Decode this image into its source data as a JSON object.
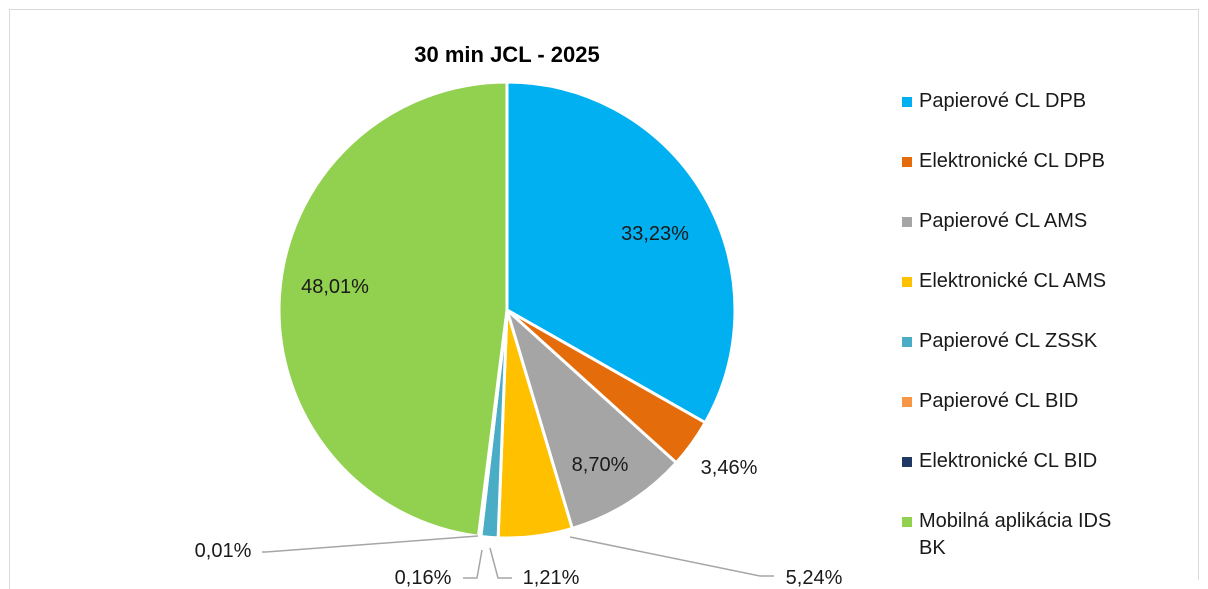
{
  "chart_data": {
    "type": "pie",
    "title": "30 min JCL - 2025",
    "legend_position": "right",
    "slices": [
      {
        "name": "Papierové CL DPB",
        "value": 33.23,
        "label": "33,23%",
        "color": "#00b0f0"
      },
      {
        "name": "Elektronické CL DPB",
        "value": 3.46,
        "label": "3,46%",
        "color": "#e46c0a"
      },
      {
        "name": "Papierové CL AMS",
        "value": 8.7,
        "label": "8,70%",
        "color": "#a5a5a5"
      },
      {
        "name": "Elektronické CL AMS",
        "value": 5.24,
        "label": "5,24%",
        "color": "#ffc000"
      },
      {
        "name": "Papierové CL ZSSK",
        "value": 1.21,
        "label": "1,21%",
        "color": "#4bacc6"
      },
      {
        "name": "Papierové CL BID",
        "value": 0.16,
        "label": "0,16%",
        "color": "#f79646"
      },
      {
        "name": "Elektronické CL BID",
        "value": 0.01,
        "label": "0,01%",
        "color": "#1f3864"
      },
      {
        "name": "Mobilná aplikácia IDS BK",
        "value": 48.01,
        "label": "48,01%",
        "color": "#92d050"
      }
    ]
  }
}
